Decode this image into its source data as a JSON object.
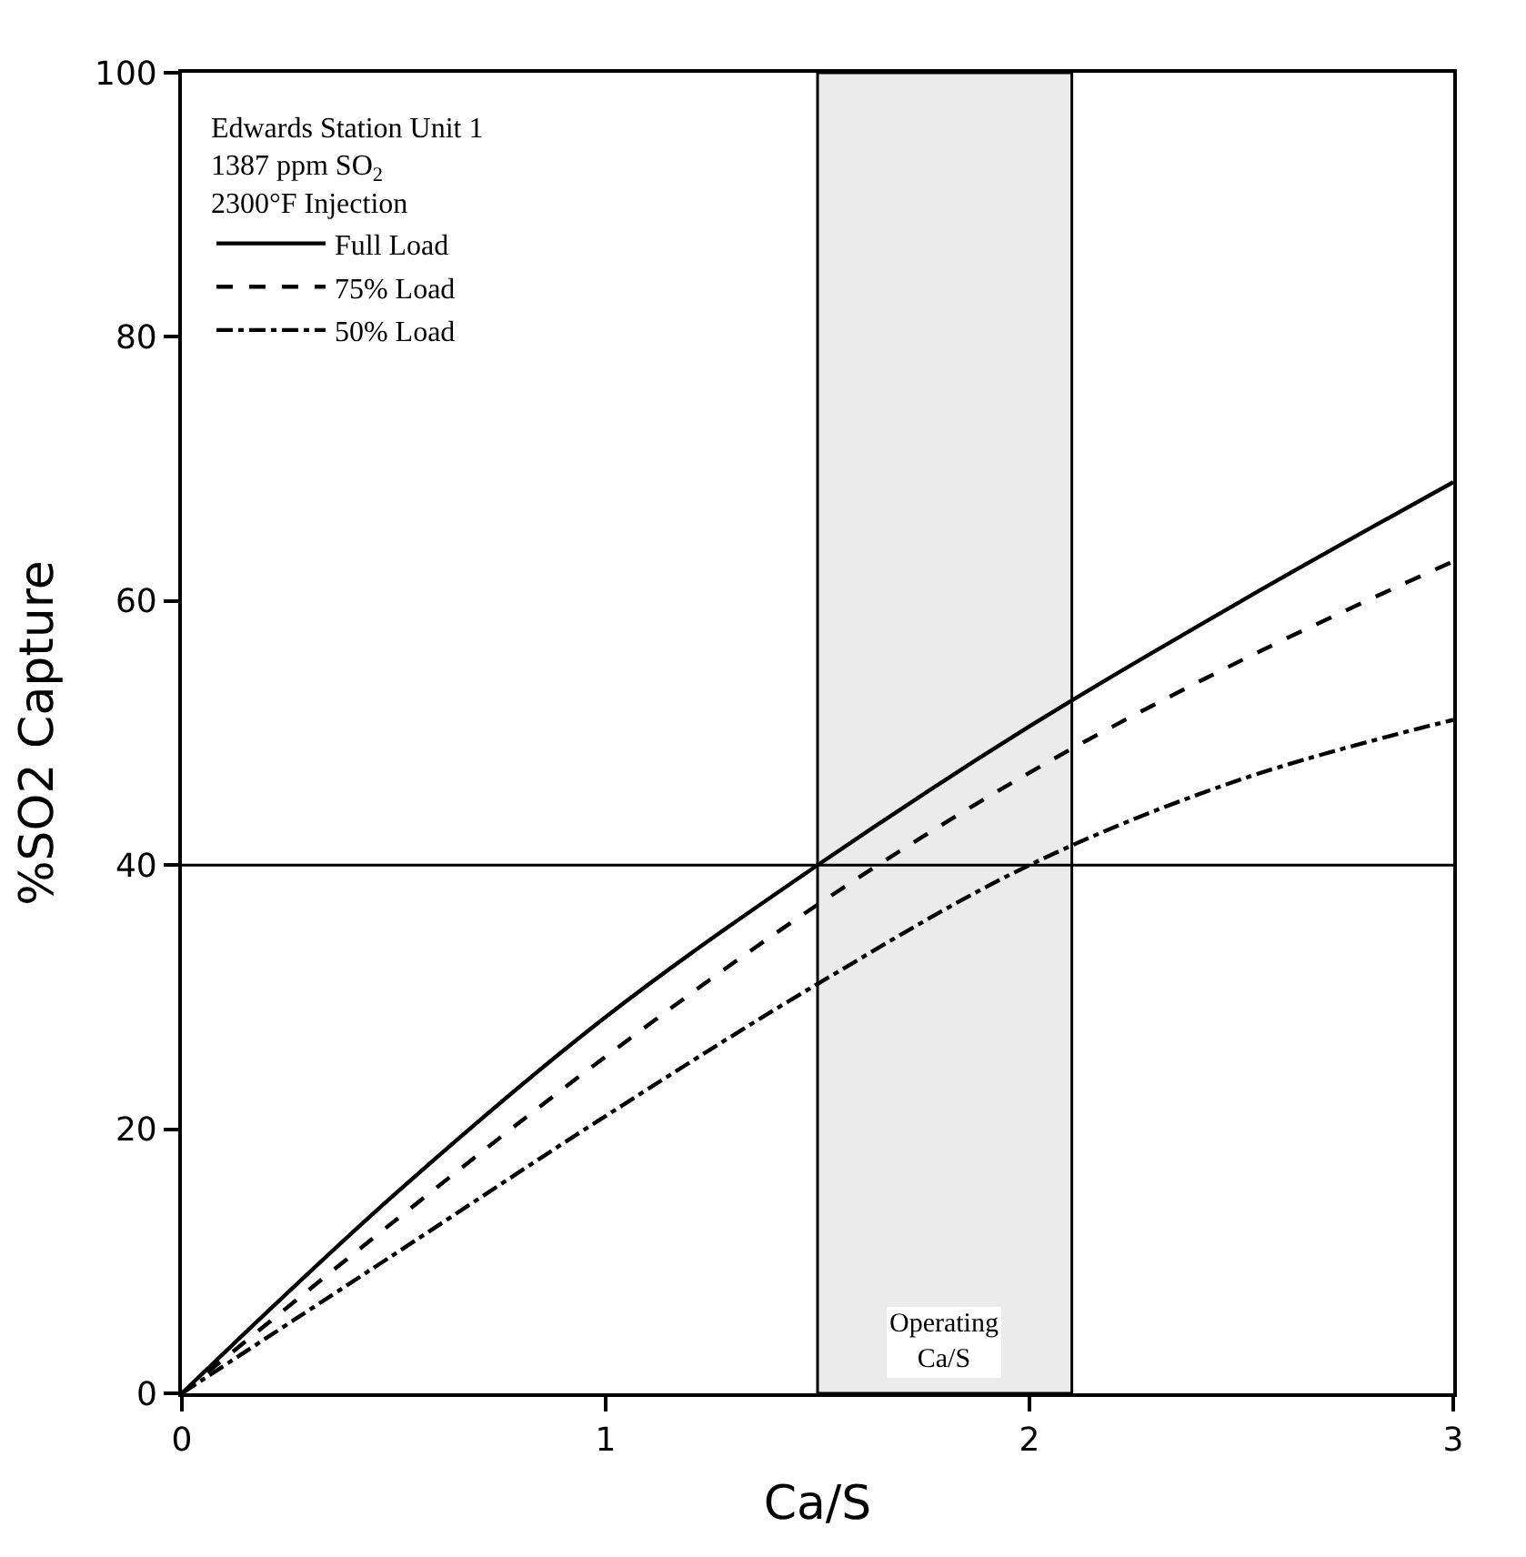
{
  "chart_data": {
    "type": "line",
    "xlabel": "Ca/S",
    "ylabel": "%SO2 Capture",
    "legend_title": "Edwards Station Unit 1\n1387 ppm SO$_{2}$\n2300°F Injection",
    "x": [
      0,
      0.5,
      1,
      1.5,
      2,
      2.5,
      3
    ],
    "series": [
      {
        "name": "Full Load",
        "color": "#000000",
        "line_style": "solid",
        "values": [
          0,
          15,
          28.5,
          40,
          50.5,
          60,
          69
        ]
      },
      {
        "name": "75% Load",
        "color": "#000000",
        "line_style": "dashed",
        "values": [
          0,
          13,
          25.5,
          37,
          47,
          55.5,
          63
        ]
      },
      {
        "name": "50% Load",
        "color": "#000000",
        "line_style": "dashdot",
        "values": [
          0,
          10.5,
          21,
          31,
          40,
          46.5,
          51
        ]
      }
    ],
    "ref_lines": [
      {
        "axis": "y",
        "value": 40,
        "color": "#000000"
      }
    ],
    "bands": [
      {
        "axis": "x",
        "from": 1.5,
        "to": 2.1,
        "label": "Operating\nCa/S",
        "color": "#000000"
      }
    ],
    "xlim": [
      0,
      3
    ],
    "xticks": [
      0,
      1,
      2,
      3
    ],
    "ylim": [
      0,
      100
    ],
    "yticks": [
      0,
      20,
      40,
      60,
      80,
      100
    ],
    "legend": "top left",
    "marker": "none"
  }
}
